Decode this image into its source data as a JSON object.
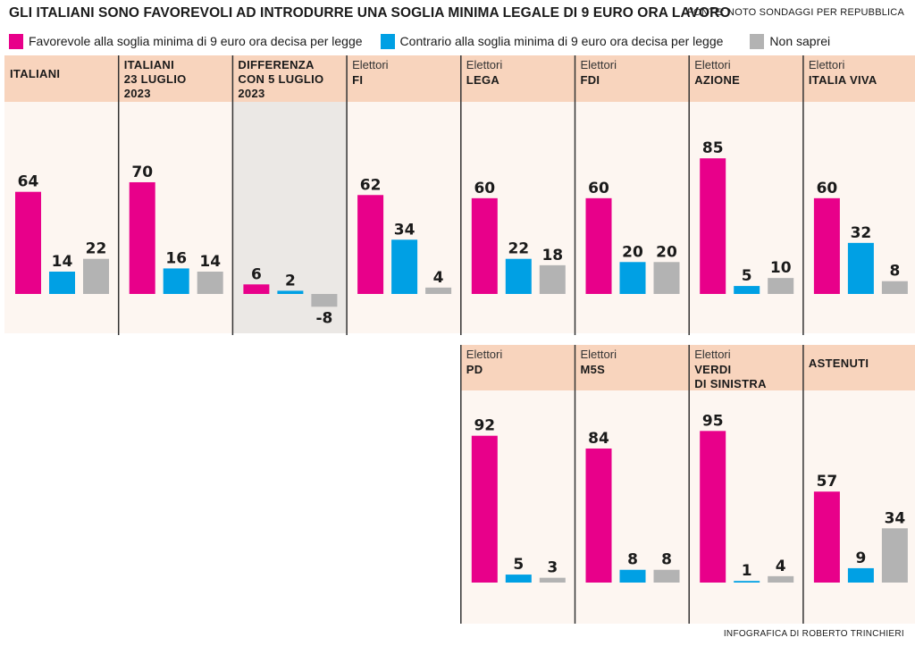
{
  "header": {
    "title": "GLI ITALIANI SONO FAVOREVOLI AD INTRODURRE UNA SOGLIA MINIMA LEGALE DI 9 EURO ORA LAVORO",
    "source": "FONTE: NOTO SONDAGGI PER REPUBBLICA"
  },
  "footer": {
    "credit": "INFOGRAFICA DI ROBERTO TRINCHIERI"
  },
  "colors": {
    "favorevole": "#e8008a",
    "contrario": "#00a0e4",
    "non_saprei": "#b3b3b3",
    "header_bg": "#f8d4bd"
  },
  "legend": [
    {
      "label": "Favorevole alla soglia minima di 9 euro ora decisa per legge",
      "color": "#e8008a"
    },
    {
      "label": "Contrario alla soglia minima di 9 euro ora decisa per legge",
      "color": "#00a0e4"
    },
    {
      "label": "Non saprei",
      "color": "#b3b3b3"
    }
  ],
  "chart_data": {
    "type": "bar",
    "title": "GLI ITALIANI SONO FAVOREVOLI AD INTRODURRE UNA SOGLIA MINIMA LEGALE DI 9 EURO ORA LAVORO",
    "series_names": [
      "Favorevole alla soglia minima di 9 euro ora decisa per legge",
      "Contrario alla soglia minima di 9 euro ora decisa per legge",
      "Non saprei"
    ],
    "unit": "%",
    "rows": [
      {
        "panels": [
          {
            "id": "italiani",
            "prefix": "",
            "title": [
              "ITALIANI"
            ],
            "values": [
              64,
              14,
              22
            ]
          },
          {
            "id": "italiani-23-luglio",
            "prefix": "",
            "title": [
              "ITALIANI",
              "23 LUGLIO",
              "2023"
            ],
            "values": [
              70,
              16,
              14
            ]
          },
          {
            "id": "differenza",
            "prefix": "",
            "title": [
              "DIFFERENZA",
              "CON 5 LUGLIO",
              "2023"
            ],
            "values": [
              6,
              2,
              -8
            ],
            "shaded": true
          },
          {
            "id": "fi",
            "prefix": "Elettori",
            "title": [
              "FI"
            ],
            "values": [
              62,
              34,
              4
            ]
          },
          {
            "id": "lega",
            "prefix": "Elettori",
            "title": [
              "LEGA"
            ],
            "values": [
              60,
              22,
              18
            ]
          },
          {
            "id": "fdi",
            "prefix": "Elettori",
            "title": [
              "FDI"
            ],
            "values": [
              60,
              20,
              20
            ]
          },
          {
            "id": "azione",
            "prefix": "Elettori",
            "title": [
              "AZIONE"
            ],
            "values": [
              85,
              5,
              10
            ]
          },
          {
            "id": "italia-viva",
            "prefix": "Elettori",
            "title": [
              "ITALIA VIVA"
            ],
            "values": [
              60,
              32,
              8
            ]
          }
        ]
      },
      {
        "panels": [
          {
            "id": "pd",
            "prefix": "Elettori",
            "title": [
              "PD"
            ],
            "values": [
              92,
              5,
              3
            ]
          },
          {
            "id": "m5s",
            "prefix": "Elettori",
            "title": [
              "M5S"
            ],
            "values": [
              84,
              8,
              8
            ]
          },
          {
            "id": "verdi-di-sinistra",
            "prefix": "Elettori",
            "title": [
              "VERDI",
              "DI SINISTRA"
            ],
            "values": [
              95,
              1,
              4
            ]
          },
          {
            "id": "astenuti",
            "prefix": "",
            "title": [
              "ASTENUTI"
            ],
            "values": [
              57,
              9,
              34
            ]
          }
        ]
      }
    ]
  }
}
